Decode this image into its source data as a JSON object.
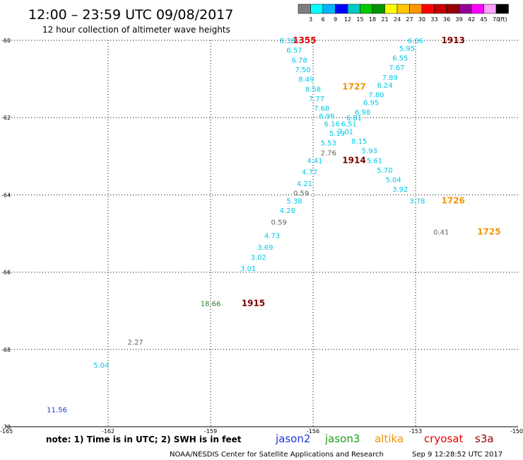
{
  "header": {
    "title": "12:00 – 23:59 UTC 09/08/2017",
    "subtitle": "12 hour collection of altimeter wave heights"
  },
  "colorbar": {
    "colors": [
      "#7f7f7f",
      "#00ffff",
      "#00b4ff",
      "#0000ff",
      "#00c8c8",
      "#00c800",
      "#009600",
      "#ffff00",
      "#ffc800",
      "#ff9600",
      "#ff0000",
      "#c80000",
      "#960000",
      "#960096",
      "#ff00ff",
      "#ffa0ff",
      "#000000"
    ],
    "labels": [
      "3",
      "6",
      "9",
      "12",
      "15",
      "18",
      "21",
      "24",
      "27",
      "30",
      "33",
      "36",
      "39",
      "42",
      "45",
      "70"
    ],
    "unit": "(ft)"
  },
  "chart_data": {
    "type": "scatter",
    "xlim": [
      -165,
      -150
    ],
    "ylim": [
      -70,
      -60
    ],
    "x_ticks": [
      -165,
      -162,
      -159,
      -156,
      -153,
      -150
    ],
    "y_ticks": [
      -60,
      -62,
      -64,
      -66,
      -68,
      -70
    ],
    "grid": true,
    "colors": {
      "cyan": "#00c8e6",
      "blue": "#1e3cc8",
      "green": "#2d7d2d",
      "gray": "#646464",
      "red": "#e60000",
      "darkred": "#7d0000",
      "orange": "#f09600"
    },
    "points": [
      {
        "lon": -156.75,
        "lat": -60.0,
        "swh": "8.38",
        "color": "cyan"
      },
      {
        "lon": -156.55,
        "lat": -60.25,
        "swh": "6.57",
        "color": "cyan"
      },
      {
        "lon": -156.4,
        "lat": -60.5,
        "swh": "6.78",
        "color": "cyan"
      },
      {
        "lon": -156.3,
        "lat": -60.75,
        "swh": "7.50",
        "color": "cyan"
      },
      {
        "lon": -156.2,
        "lat": -61.0,
        "swh": "8.49",
        "color": "cyan"
      },
      {
        "lon": -156.0,
        "lat": -61.25,
        "swh": "8.58",
        "color": "cyan"
      },
      {
        "lon": -155.9,
        "lat": -61.5,
        "swh": "7.77",
        "color": "cyan"
      },
      {
        "lon": -155.75,
        "lat": -61.75,
        "swh": "7.68",
        "color": "cyan"
      },
      {
        "lon": -155.6,
        "lat": -61.95,
        "swh": "6.98",
        "color": "cyan"
      },
      {
        "lon": -155.45,
        "lat": -62.15,
        "swh": "6.16",
        "color": "cyan"
      },
      {
        "lon": -155.3,
        "lat": -62.4,
        "swh": "5.19",
        "color": "cyan"
      },
      {
        "lon": -155.55,
        "lat": -62.65,
        "swh": "5.53",
        "color": "cyan"
      },
      {
        "lon": -155.55,
        "lat": -62.9,
        "swh": "2.76",
        "color": "gray"
      },
      {
        "lon": -155.95,
        "lat": -63.1,
        "swh": "4.41",
        "color": "cyan"
      },
      {
        "lon": -156.1,
        "lat": -63.4,
        "swh": "4.77",
        "color": "cyan"
      },
      {
        "lon": -156.25,
        "lat": -63.7,
        "swh": "4.21",
        "color": "cyan"
      },
      {
        "lon": -156.35,
        "lat": -63.95,
        "swh": "0.59",
        "color": "gray"
      },
      {
        "lon": -156.55,
        "lat": -64.15,
        "swh": "5.38",
        "color": "cyan"
      },
      {
        "lon": -156.75,
        "lat": -64.4,
        "swh": "4.28",
        "color": "cyan"
      },
      {
        "lon": -157.0,
        "lat": -64.7,
        "swh": "0.59",
        "color": "gray"
      },
      {
        "lon": -157.2,
        "lat": -65.05,
        "swh": "4.73",
        "color": "cyan"
      },
      {
        "lon": -157.4,
        "lat": -65.35,
        "swh": "3.69",
        "color": "cyan"
      },
      {
        "lon": -157.6,
        "lat": -65.6,
        "swh": "3.02",
        "color": "cyan"
      },
      {
        "lon": -157.9,
        "lat": -65.9,
        "swh": "3.01",
        "color": "cyan"
      },
      {
        "lon": -153.0,
        "lat": -60.0,
        "swh": "6.06",
        "color": "cyan"
      },
      {
        "lon": -153.25,
        "lat": -60.2,
        "swh": "5.95",
        "color": "cyan"
      },
      {
        "lon": -153.45,
        "lat": -60.45,
        "swh": "6.55",
        "color": "cyan"
      },
      {
        "lon": -153.55,
        "lat": -60.7,
        "swh": "7.67",
        "color": "cyan"
      },
      {
        "lon": -153.75,
        "lat": -60.95,
        "swh": "7.89",
        "color": "cyan"
      },
      {
        "lon": -153.9,
        "lat": -61.15,
        "swh": "8.24",
        "color": "cyan"
      },
      {
        "lon": -154.15,
        "lat": -61.4,
        "swh": "7.80",
        "color": "cyan"
      },
      {
        "lon": -154.3,
        "lat": -61.6,
        "swh": "6.95",
        "color": "cyan"
      },
      {
        "lon": -154.55,
        "lat": -61.85,
        "swh": "6.98",
        "color": "cyan"
      },
      {
        "lon": -154.8,
        "lat": -62.0,
        "swh": "6.81",
        "color": "cyan"
      },
      {
        "lon": -154.95,
        "lat": -62.15,
        "swh": "6.51",
        "color": "cyan"
      },
      {
        "lon": -155.05,
        "lat": -62.35,
        "swh": "7.01",
        "color": "cyan"
      },
      {
        "lon": -154.65,
        "lat": -62.6,
        "swh": "8.15",
        "color": "cyan"
      },
      {
        "lon": -154.35,
        "lat": -62.85,
        "swh": "5.93",
        "color": "cyan"
      },
      {
        "lon": -154.2,
        "lat": -63.1,
        "swh": "5.61",
        "color": "cyan"
      },
      {
        "lon": -153.9,
        "lat": -63.35,
        "swh": "5.70",
        "color": "cyan"
      },
      {
        "lon": -153.65,
        "lat": -63.6,
        "swh": "5.04",
        "color": "cyan"
      },
      {
        "lon": -153.45,
        "lat": -63.85,
        "swh": "3.92",
        "color": "cyan"
      },
      {
        "lon": -152.95,
        "lat": -64.15,
        "swh": "3.78",
        "color": "cyan"
      },
      {
        "lon": -152.25,
        "lat": -64.95,
        "swh": "0.41",
        "color": "gray"
      },
      {
        "lon": -159.0,
        "lat": -66.8,
        "swh": "18.66",
        "color": "green"
      },
      {
        "lon": -161.2,
        "lat": -67.8,
        "swh": "2.27",
        "color": "gray"
      },
      {
        "lon": -162.2,
        "lat": -68.4,
        "swh": "5.04",
        "color": "cyan"
      },
      {
        "lon": -163.5,
        "lat": -69.55,
        "swh": "11.56",
        "color": "blue"
      }
    ],
    "pass_times": [
      {
        "lon": -156.25,
        "lat": -60.0,
        "time": "1355",
        "color": "red"
      },
      {
        "lon": -151.9,
        "lat": -60.0,
        "time": "1913",
        "color": "darkred"
      },
      {
        "lon": -154.8,
        "lat": -61.2,
        "time": "1727",
        "color": "orange"
      },
      {
        "lon": -154.8,
        "lat": -63.1,
        "time": "1914",
        "color": "darkred"
      },
      {
        "lon": -151.9,
        "lat": -64.15,
        "time": "1726",
        "color": "orange"
      },
      {
        "lon": -150.85,
        "lat": -64.95,
        "time": "1725",
        "color": "orange"
      },
      {
        "lon": -157.75,
        "lat": -66.8,
        "time": "1915",
        "color": "darkred"
      }
    ]
  },
  "footer": {
    "note": "note: 1) Time is in UTC; 2) SWH is in feet",
    "legend": [
      {
        "label": "jason2",
        "color": "#1e32dc"
      },
      {
        "label": "jason3",
        "color": "#18a018"
      },
      {
        "label": "altika",
        "color": "#f09600"
      },
      {
        "label": "cryosat",
        "color": "#e60000"
      },
      {
        "label": "s3a",
        "color": "#960000"
      }
    ],
    "credit": "NOAA/NESDIS Center for Satellite Applications and Research",
    "timestamp": "Sep  9 12:28:52 UTC 2017"
  }
}
